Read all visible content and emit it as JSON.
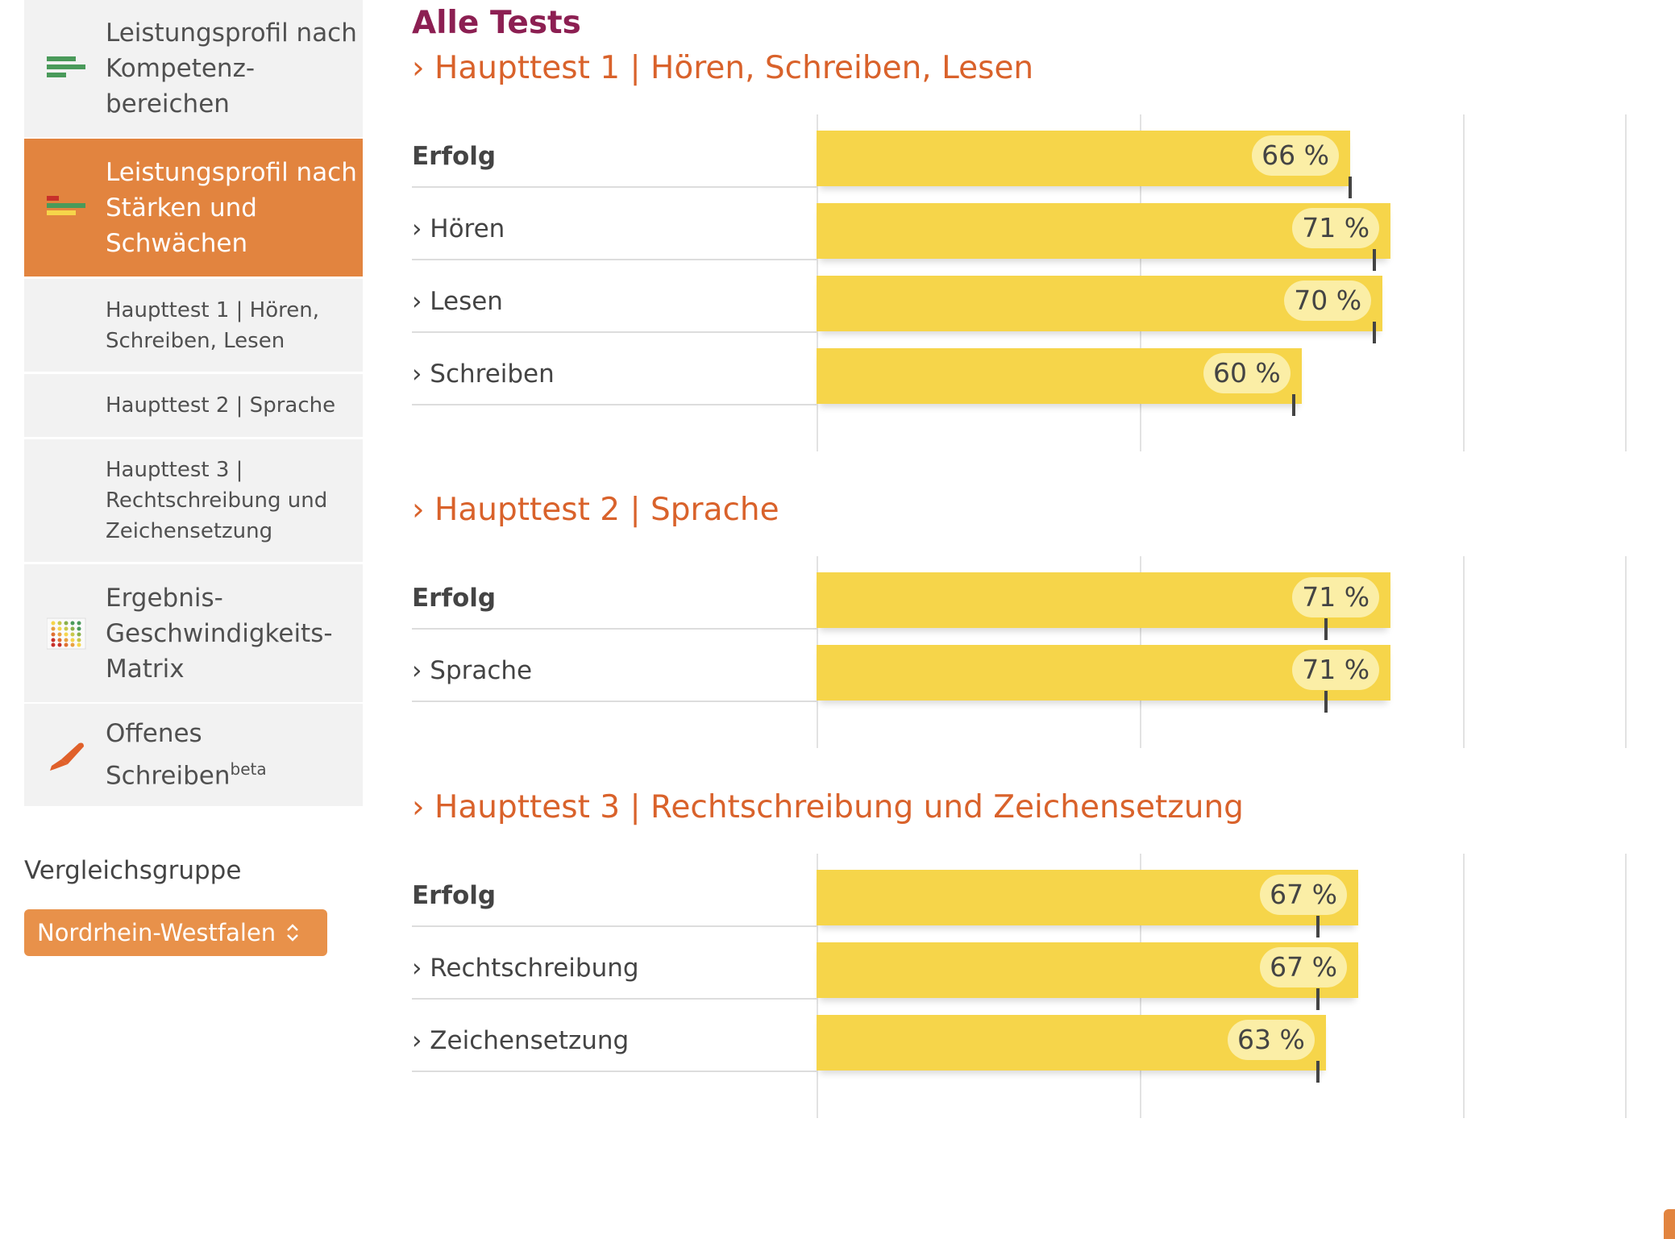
{
  "sidebar": {
    "items": [
      {
        "label": "Leistungsprofil nach Kompetenz-bereichen",
        "icon": "bar-chart-green-icon"
      },
      {
        "label": "Leistungsprofil nach Stärken und Schwächen",
        "icon": "bar-chart-strengths-icon",
        "active": true
      },
      {
        "label": "Haupttest 1 | Hören, Schreiben, Lesen"
      },
      {
        "label": "Haupttest 2 | Sprache"
      },
      {
        "label": "Haupttest 3 | Rechtschreibung und Zeichensetzung"
      },
      {
        "label": "Ergebnis-Geschwindigkeits-Matrix",
        "icon": "matrix-icon"
      },
      {
        "label": "Offenes Schreiben",
        "sup": "beta",
        "icon": "pen-icon"
      }
    ]
  },
  "comparison": {
    "label": "Vergleichsgruppe",
    "selected": "Nordrhein-Westfalen"
  },
  "main": {
    "title": "Alle Tests"
  },
  "colors": {
    "accent": "#e2843f",
    "heading": "#d9622b",
    "title": "#8c1f52",
    "bar": "#f6d54a"
  },
  "chart_data": [
    {
      "type": "bar",
      "title": "Haupttest 1 | Hören, Schreiben, Lesen",
      "xlim": [
        0,
        100
      ],
      "gridlines": [
        0,
        40,
        80,
        100
      ],
      "categories": [
        "Erfolg",
        "Hören",
        "Lesen",
        "Schreiben"
      ],
      "values": [
        66,
        71,
        70,
        60
      ],
      "labels": [
        "66 %",
        "71 %",
        "70 %",
        "60 %"
      ],
      "comparison": [
        66,
        69,
        69,
        59
      ]
    },
    {
      "type": "bar",
      "title": "Haupttest 2 | Sprache",
      "xlim": [
        0,
        100
      ],
      "gridlines": [
        0,
        40,
        80,
        100
      ],
      "categories": [
        "Erfolg",
        "Sprache"
      ],
      "values": [
        71,
        71
      ],
      "labels": [
        "71 %",
        "71 %"
      ],
      "comparison": [
        63,
        63
      ]
    },
    {
      "type": "bar",
      "title": "Haupttest 3 | Rechtschreibung und Zeichensetzung",
      "xlim": [
        0,
        100
      ],
      "gridlines": [
        0,
        40,
        80,
        100
      ],
      "categories": [
        "Erfolg",
        "Rechtschreibung",
        "Zeichensetzung"
      ],
      "values": [
        67,
        67,
        63
      ],
      "labels": [
        "67 %",
        "67 %",
        "63 %"
      ],
      "comparison": [
        62,
        62,
        62
      ]
    }
  ]
}
